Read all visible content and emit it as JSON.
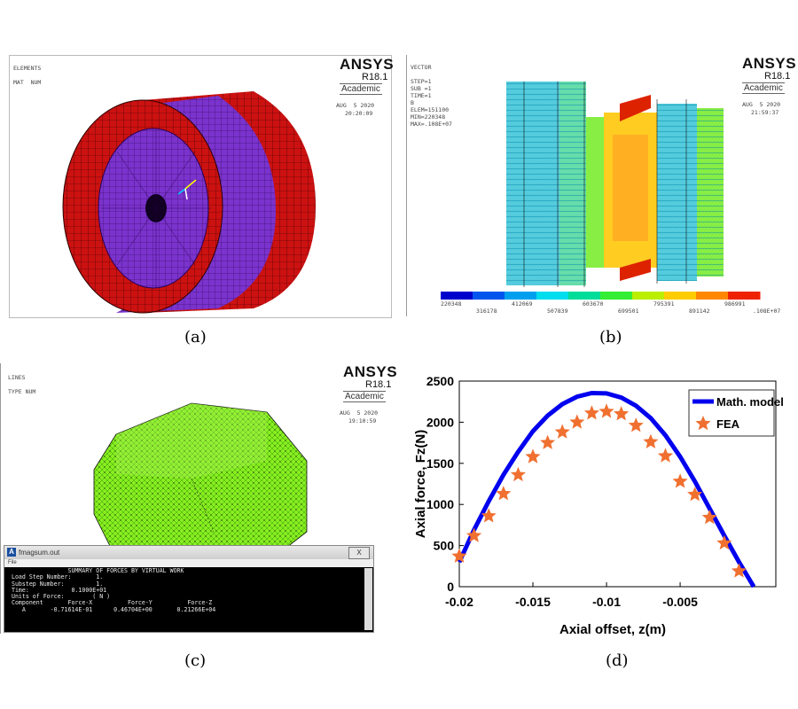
{
  "panel_a": {
    "header_lines": [
      "ELEMENTS",
      "",
      "MAT  NUM"
    ],
    "logo": "ANSYS",
    "version": "R18.1",
    "badge": "Academic",
    "date": "AUG  5 2020",
    "time": "20:20:09",
    "caption": "(a)",
    "colors": {
      "outer": "#cc1111",
      "inner": "#7a33cc"
    }
  },
  "panel_b": {
    "header_lines": [
      "VECTOR",
      "",
      "STEP=1",
      "SUB =1",
      "TIME=1",
      "B",
      "ELEM=151100",
      "MIN=220348",
      "MAX=.108E+07"
    ],
    "logo": "ANSYS",
    "version": "R18.1",
    "badge": "Academic",
    "date": "AUG  5 2020",
    "time": "21:59:37",
    "colorbar_colors": [
      "#0000cc",
      "#0055ee",
      "#00a0ee",
      "#00ddee",
      "#00dd99",
      "#33ee33",
      "#bbee00",
      "#ffcc00",
      "#ff8800",
      "#ee2200"
    ],
    "colorbar_labels_low": [
      "220348",
      "412069",
      "603670",
      "795391",
      "986991"
    ],
    "colorbar_labels_high": [
      "316178",
      "507839",
      "699501",
      "891142",
      ".108E+07"
    ],
    "caption": "(b)"
  },
  "panel_c": {
    "header_lines": [
      "LINES",
      "",
      "TYPE NUM"
    ],
    "logo": "ANSYS",
    "version": "R18.1",
    "badge": "Academic",
    "date": "AUG  5 2020",
    "time": "19:10:59",
    "dialog": {
      "title": "fmagsum.out",
      "close": "X",
      "menu": "File",
      "lines": [
        "                 SUMMARY OF FORCES BY VIRTUAL WORK",
        " Load Step Number:       1.",
        " Substep Number:         1.",
        " Time:            0.1000E+01",
        " Units of Force:        ( N )",
        " Component       Force-X          Force-Y          Force-Z",
        "    A       -0.71614E-01      0.46704E+00       0.21266E+04"
      ]
    },
    "caption": "(c)"
  },
  "panel_d": {
    "caption": "(d)"
  },
  "chart_data": {
    "type": "line",
    "title": "",
    "xlabel": "Axial offset, z(m)",
    "ylabel": "Axial force, Fz(N)",
    "xlim": [
      -0.02,
      0.0015
    ],
    "ylim": [
      0,
      2500
    ],
    "xticks": [
      -0.02,
      -0.015,
      -0.01,
      -0.005
    ],
    "xtick_labels": [
      "-0.02",
      "-0.015",
      "-0.01",
      "-0.005"
    ],
    "yticks": [
      0,
      500,
      1000,
      1500,
      2000,
      2500
    ],
    "ytick_labels": [
      "0",
      "500",
      "1000",
      "1500",
      "2000",
      "2500"
    ],
    "legend_position": "top-right",
    "series": [
      {
        "name": "Math. model",
        "style": "line",
        "color": "#0000ee",
        "x": [
          -0.02,
          -0.019,
          -0.018,
          -0.017,
          -0.016,
          -0.015,
          -0.014,
          -0.013,
          -0.012,
          -0.011,
          -0.01,
          -0.009,
          -0.008,
          -0.007,
          -0.006,
          -0.005,
          -0.004,
          -0.003,
          -0.002,
          -0.001,
          0.0
        ],
        "y": [
          300,
          690,
          1040,
          1360,
          1640,
          1890,
          2080,
          2220,
          2310,
          2355,
          2350,
          2300,
          2200,
          2050,
          1840,
          1580,
          1280,
          950,
          620,
          300,
          0
        ]
      },
      {
        "name": "FEA",
        "style": "star",
        "color": "#f07030",
        "x": [
          -0.02,
          -0.019,
          -0.018,
          -0.017,
          -0.016,
          -0.015,
          -0.014,
          -0.013,
          -0.012,
          -0.011,
          -0.01,
          -0.009,
          -0.008,
          -0.007,
          -0.006,
          -0.005,
          -0.004,
          -0.003,
          -0.002,
          -0.001
        ],
        "y": [
          370,
          620,
          860,
          1130,
          1360,
          1580,
          1750,
          1880,
          2000,
          2110,
          2130,
          2100,
          1960,
          1760,
          1590,
          1280,
          1120,
          840,
          530,
          190
        ]
      }
    ]
  }
}
